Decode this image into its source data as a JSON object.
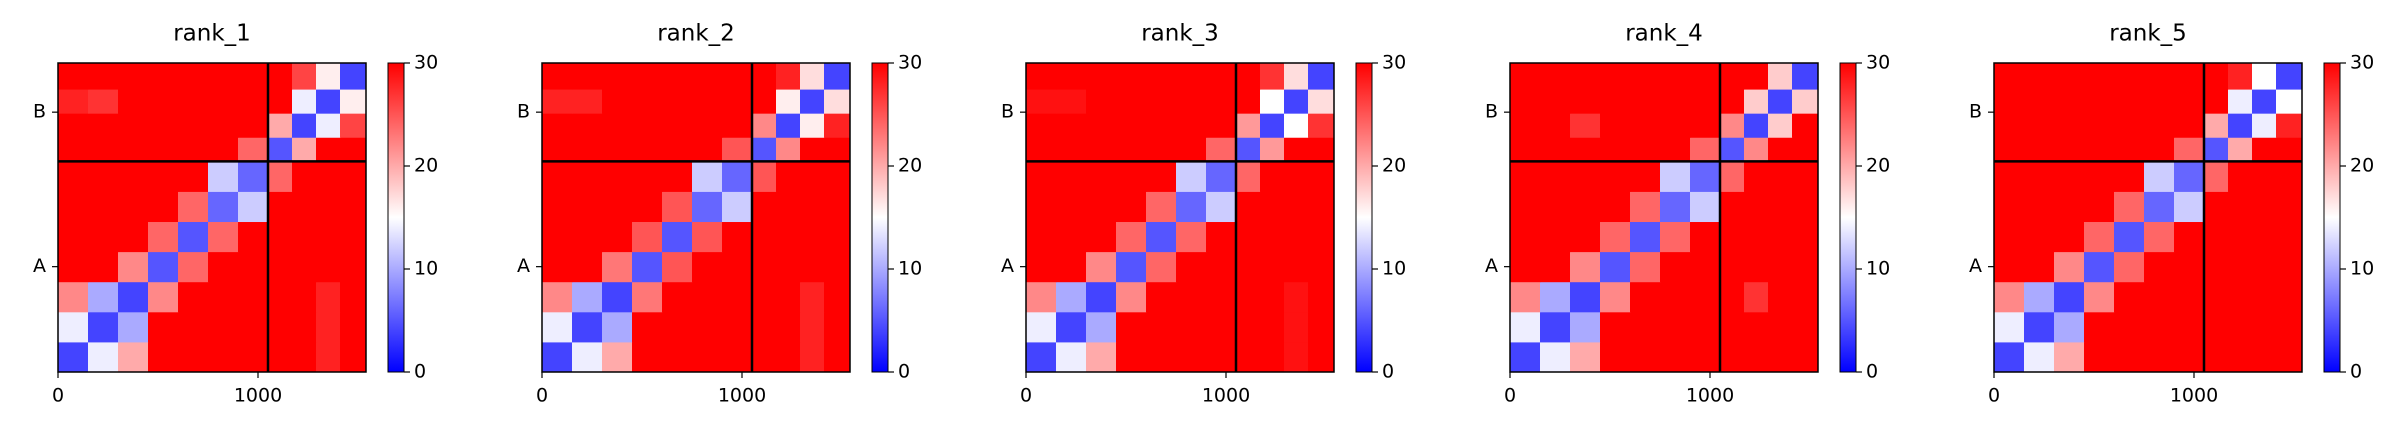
{
  "chart_data": [
    {
      "type": "heatmap",
      "title": "rank_1",
      "edges": [
        0,
        150,
        300,
        450,
        600,
        750,
        900,
        1050,
        1170,
        1290,
        1410,
        1540
      ],
      "z": [
        [
          4,
          14,
          20,
          30,
          30,
          30,
          30,
          30,
          30,
          28,
          30
        ],
        [
          14,
          4,
          10,
          30,
          30,
          30,
          30,
          30,
          30,
          28,
          30
        ],
        [
          22,
          10,
          4,
          22,
          30,
          30,
          30,
          30,
          30,
          28,
          30
        ],
        [
          30,
          30,
          22,
          5,
          24,
          30,
          30,
          30,
          30,
          30,
          30
        ],
        [
          30,
          30,
          30,
          24,
          5,
          24,
          30,
          30,
          30,
          30,
          30
        ],
        [
          30,
          30,
          30,
          30,
          24,
          6,
          12,
          30,
          30,
          30,
          30
        ],
        [
          30,
          30,
          30,
          30,
          30,
          12,
          6,
          24,
          30,
          30,
          30
        ],
        [
          30,
          30,
          30,
          30,
          30,
          30,
          24,
          5,
          20,
          30,
          30
        ],
        [
          30,
          30,
          30,
          30,
          30,
          30,
          30,
          20,
          4,
          14,
          26
        ],
        [
          28,
          27,
          30,
          30,
          30,
          30,
          30,
          30,
          14,
          4,
          16
        ],
        [
          30,
          30,
          30,
          30,
          30,
          30,
          30,
          30,
          26,
          16,
          4
        ]
      ],
      "xlim": [
        0,
        1540
      ],
      "xticks": [
        0,
        1000
      ],
      "ylim": [
        1540,
        0
      ],
      "yticks": [
        {
          "value": 525,
          "label": "A"
        },
        {
          "value": 1295,
          "label": "B"
        }
      ],
      "chain_breaks": [
        1050
      ],
      "clim": [
        0,
        30
      ],
      "cticks": [
        0,
        10,
        20,
        30
      ],
      "colormap": [
        "#0000ff",
        "#ffffff",
        "#ff0000"
      ]
    },
    {
      "type": "heatmap",
      "title": "rank_2",
      "edges": [
        0,
        150,
        300,
        450,
        600,
        750,
        900,
        1050,
        1170,
        1290,
        1410,
        1540
      ],
      "z": [
        [
          4,
          14,
          20,
          30,
          30,
          30,
          30,
          30,
          30,
          28,
          30
        ],
        [
          14,
          4,
          10,
          30,
          30,
          30,
          30,
          30,
          30,
          28,
          30
        ],
        [
          22,
          10,
          4,
          23,
          30,
          30,
          30,
          30,
          30,
          28,
          30
        ],
        [
          30,
          30,
          23,
          5,
          25,
          30,
          30,
          30,
          30,
          30,
          30
        ],
        [
          30,
          30,
          30,
          25,
          5,
          25,
          30,
          30,
          30,
          30,
          30
        ],
        [
          30,
          30,
          30,
          30,
          25,
          6,
          12,
          30,
          30,
          30,
          30
        ],
        [
          30,
          30,
          30,
          30,
          30,
          12,
          6,
          25,
          30,
          30,
          30
        ],
        [
          30,
          30,
          30,
          30,
          30,
          30,
          25,
          5,
          22,
          30,
          30
        ],
        [
          30,
          30,
          30,
          30,
          30,
          30,
          30,
          22,
          4,
          16,
          28
        ],
        [
          28,
          28,
          30,
          30,
          30,
          30,
          30,
          30,
          16,
          4,
          17
        ],
        [
          30,
          30,
          30,
          30,
          30,
          30,
          30,
          30,
          28,
          17,
          4
        ]
      ],
      "xlim": [
        0,
        1540
      ],
      "xticks": [
        0,
        1000
      ],
      "ylim": [
        1540,
        0
      ],
      "yticks": [
        {
          "value": 525,
          "label": "A"
        },
        {
          "value": 1295,
          "label": "B"
        }
      ],
      "chain_breaks": [
        1050
      ],
      "clim": [
        0,
        30
      ],
      "cticks": [
        0,
        10,
        20,
        30
      ],
      "colormap": [
        "#0000ff",
        "#ffffff",
        "#ff0000"
      ]
    },
    {
      "type": "heatmap",
      "title": "rank_3",
      "edges": [
        0,
        150,
        300,
        450,
        600,
        750,
        900,
        1050,
        1170,
        1290,
        1410,
        1540
      ],
      "z": [
        [
          4,
          14,
          20,
          30,
          30,
          30,
          30,
          30,
          30,
          29,
          30
        ],
        [
          14,
          4,
          10,
          30,
          30,
          30,
          30,
          30,
          30,
          29,
          30
        ],
        [
          22,
          10,
          4,
          22,
          30,
          30,
          30,
          30,
          30,
          29,
          30
        ],
        [
          30,
          30,
          22,
          5,
          24,
          30,
          30,
          30,
          30,
          30,
          30
        ],
        [
          30,
          30,
          30,
          24,
          5,
          24,
          30,
          30,
          30,
          30,
          30
        ],
        [
          30,
          30,
          30,
          30,
          24,
          6,
          12,
          30,
          30,
          30,
          30
        ],
        [
          30,
          30,
          30,
          30,
          30,
          12,
          6,
          24,
          30,
          30,
          30
        ],
        [
          30,
          30,
          30,
          30,
          30,
          30,
          24,
          5,
          21,
          30,
          30
        ],
        [
          30,
          30,
          30,
          30,
          30,
          30,
          30,
          21,
          4,
          15,
          27
        ],
        [
          29,
          29,
          30,
          30,
          30,
          30,
          30,
          30,
          15,
          4,
          17
        ],
        [
          30,
          30,
          30,
          30,
          30,
          30,
          30,
          30,
          27,
          17,
          4
        ]
      ],
      "xlim": [
        0,
        1540
      ],
      "xticks": [
        0,
        1000
      ],
      "ylim": [
        1540,
        0
      ],
      "yticks": [
        {
          "value": 525,
          "label": "A"
        },
        {
          "value": 1295,
          "label": "B"
        }
      ],
      "chain_breaks": [
        1050
      ],
      "clim": [
        0,
        30
      ],
      "cticks": [
        0,
        10,
        20,
        30
      ],
      "colormap": [
        "#0000ff",
        "#ffffff",
        "#ff0000"
      ]
    },
    {
      "type": "heatmap",
      "title": "rank_4",
      "edges": [
        0,
        150,
        300,
        450,
        600,
        750,
        900,
        1050,
        1170,
        1290,
        1410,
        1540
      ],
      "z": [
        [
          4,
          14,
          20,
          30,
          30,
          30,
          30,
          30,
          30,
          30,
          30
        ],
        [
          14,
          4,
          10,
          30,
          30,
          30,
          30,
          30,
          30,
          30,
          30
        ],
        [
          22,
          10,
          4,
          22,
          30,
          30,
          30,
          30,
          27,
          30,
          30
        ],
        [
          30,
          30,
          22,
          5,
          24,
          30,
          30,
          30,
          30,
          30,
          30
        ],
        [
          30,
          30,
          30,
          24,
          5,
          24,
          30,
          30,
          30,
          30,
          30
        ],
        [
          30,
          30,
          30,
          30,
          24,
          6,
          12,
          30,
          30,
          30,
          30
        ],
        [
          30,
          30,
          30,
          30,
          30,
          12,
          6,
          24,
          30,
          30,
          30
        ],
        [
          30,
          30,
          30,
          30,
          30,
          30,
          24,
          5,
          22,
          30,
          30
        ],
        [
          30,
          30,
          27,
          30,
          30,
          30,
          30,
          22,
          4,
          18,
          30
        ],
        [
          30,
          30,
          30,
          30,
          30,
          30,
          30,
          30,
          18,
          4,
          18
        ],
        [
          30,
          30,
          30,
          30,
          30,
          30,
          30,
          30,
          30,
          18,
          4
        ]
      ],
      "xlim": [
        0,
        1540
      ],
      "xticks": [
        0,
        1000
      ],
      "ylim": [
        1540,
        0
      ],
      "yticks": [
        {
          "value": 525,
          "label": "A"
        },
        {
          "value": 1295,
          "label": "B"
        }
      ],
      "chain_breaks": [
        1050
      ],
      "clim": [
        0,
        30
      ],
      "cticks": [
        0,
        10,
        20,
        30
      ],
      "colormap": [
        "#0000ff",
        "#ffffff",
        "#ff0000"
      ]
    },
    {
      "type": "heatmap",
      "title": "rank_5",
      "edges": [
        0,
        150,
        300,
        450,
        600,
        750,
        900,
        1050,
        1170,
        1290,
        1410,
        1540
      ],
      "z": [
        [
          4,
          14,
          20,
          30,
          30,
          30,
          30,
          30,
          30,
          30,
          30
        ],
        [
          14,
          4,
          10,
          30,
          30,
          30,
          30,
          30,
          30,
          30,
          30
        ],
        [
          22,
          10,
          4,
          22,
          30,
          30,
          30,
          30,
          30,
          30,
          30
        ],
        [
          30,
          30,
          22,
          5,
          24,
          30,
          30,
          30,
          30,
          30,
          30
        ],
        [
          30,
          30,
          30,
          24,
          5,
          24,
          30,
          30,
          30,
          30,
          30
        ],
        [
          30,
          30,
          30,
          30,
          24,
          6,
          12,
          30,
          30,
          30,
          30
        ],
        [
          30,
          30,
          30,
          30,
          30,
          12,
          6,
          24,
          30,
          30,
          30
        ],
        [
          30,
          30,
          30,
          30,
          30,
          30,
          24,
          5,
          20,
          30,
          30
        ],
        [
          30,
          30,
          30,
          30,
          30,
          30,
          30,
          20,
          4,
          14,
          28
        ],
        [
          30,
          30,
          30,
          30,
          30,
          30,
          30,
          30,
          14,
          4,
          15
        ],
        [
          30,
          30,
          30,
          30,
          30,
          30,
          30,
          30,
          28,
          15,
          4
        ]
      ],
      "xlim": [
        0,
        1540
      ],
      "xticks": [
        0,
        1000
      ],
      "ylim": [
        1540,
        0
      ],
      "yticks": [
        {
          "value": 525,
          "label": "A"
        },
        {
          "value": 1295,
          "label": "B"
        }
      ],
      "chain_breaks": [
        1050
      ],
      "clim": [
        0,
        30
      ],
      "cticks": [
        0,
        10,
        20,
        30
      ],
      "colormap": [
        "#0000ff",
        "#ffffff",
        "#ff0000"
      ]
    }
  ]
}
